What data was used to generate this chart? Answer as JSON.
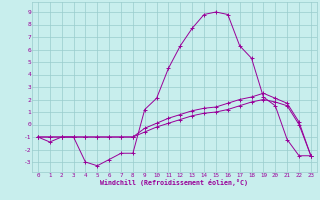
{
  "xlabel": "Windchill (Refroidissement éolien,°C)",
  "xlim": [
    -0.5,
    23.5
  ],
  "ylim": [
    -3.8,
    9.8
  ],
  "yticks": [
    -3,
    -2,
    -1,
    0,
    1,
    2,
    3,
    4,
    5,
    6,
    7,
    8,
    9
  ],
  "xticks": [
    0,
    1,
    2,
    3,
    4,
    5,
    6,
    7,
    8,
    9,
    10,
    11,
    12,
    13,
    14,
    15,
    16,
    17,
    18,
    19,
    20,
    21,
    22,
    23
  ],
  "bg_color": "#c8eeed",
  "line_color": "#990099",
  "grid_color": "#99cccc",
  "line1_x": [
    0,
    1,
    2,
    3,
    4,
    5,
    6,
    7,
    8,
    9,
    10,
    11,
    12,
    13,
    14,
    15,
    16,
    17,
    18,
    19,
    20,
    21,
    22,
    23
  ],
  "line1_y": [
    -1.0,
    -1.4,
    -1.0,
    -1.0,
    -3.0,
    -3.3,
    -2.8,
    -2.3,
    -2.3,
    1.2,
    2.1,
    4.5,
    6.3,
    7.7,
    8.8,
    9.0,
    8.8,
    6.3,
    5.3,
    2.2,
    1.5,
    -1.2,
    -2.5,
    -2.5
  ],
  "line2_x": [
    0,
    1,
    2,
    3,
    4,
    5,
    6,
    7,
    8,
    9,
    10,
    11,
    12,
    13,
    14,
    15,
    16,
    17,
    18,
    19,
    20,
    21,
    22,
    23
  ],
  "line2_y": [
    -1.0,
    -1.0,
    -1.0,
    -1.0,
    -1.0,
    -1.0,
    -1.0,
    -1.0,
    -1.0,
    -0.6,
    -0.2,
    0.1,
    0.4,
    0.7,
    0.9,
    1.0,
    1.2,
    1.5,
    1.8,
    2.0,
    1.8,
    1.5,
    0.0,
    -2.5
  ],
  "line3_x": [
    0,
    1,
    2,
    3,
    4,
    5,
    6,
    7,
    8,
    9,
    10,
    11,
    12,
    13,
    14,
    15,
    16,
    17,
    18,
    19,
    20,
    21,
    22,
    23
  ],
  "line3_y": [
    -1.0,
    -1.0,
    -1.0,
    -1.0,
    -1.0,
    -1.0,
    -1.0,
    -1.0,
    -1.0,
    -0.3,
    0.1,
    0.5,
    0.8,
    1.1,
    1.3,
    1.4,
    1.7,
    2.0,
    2.2,
    2.5,
    2.1,
    1.7,
    0.2,
    -2.5
  ]
}
